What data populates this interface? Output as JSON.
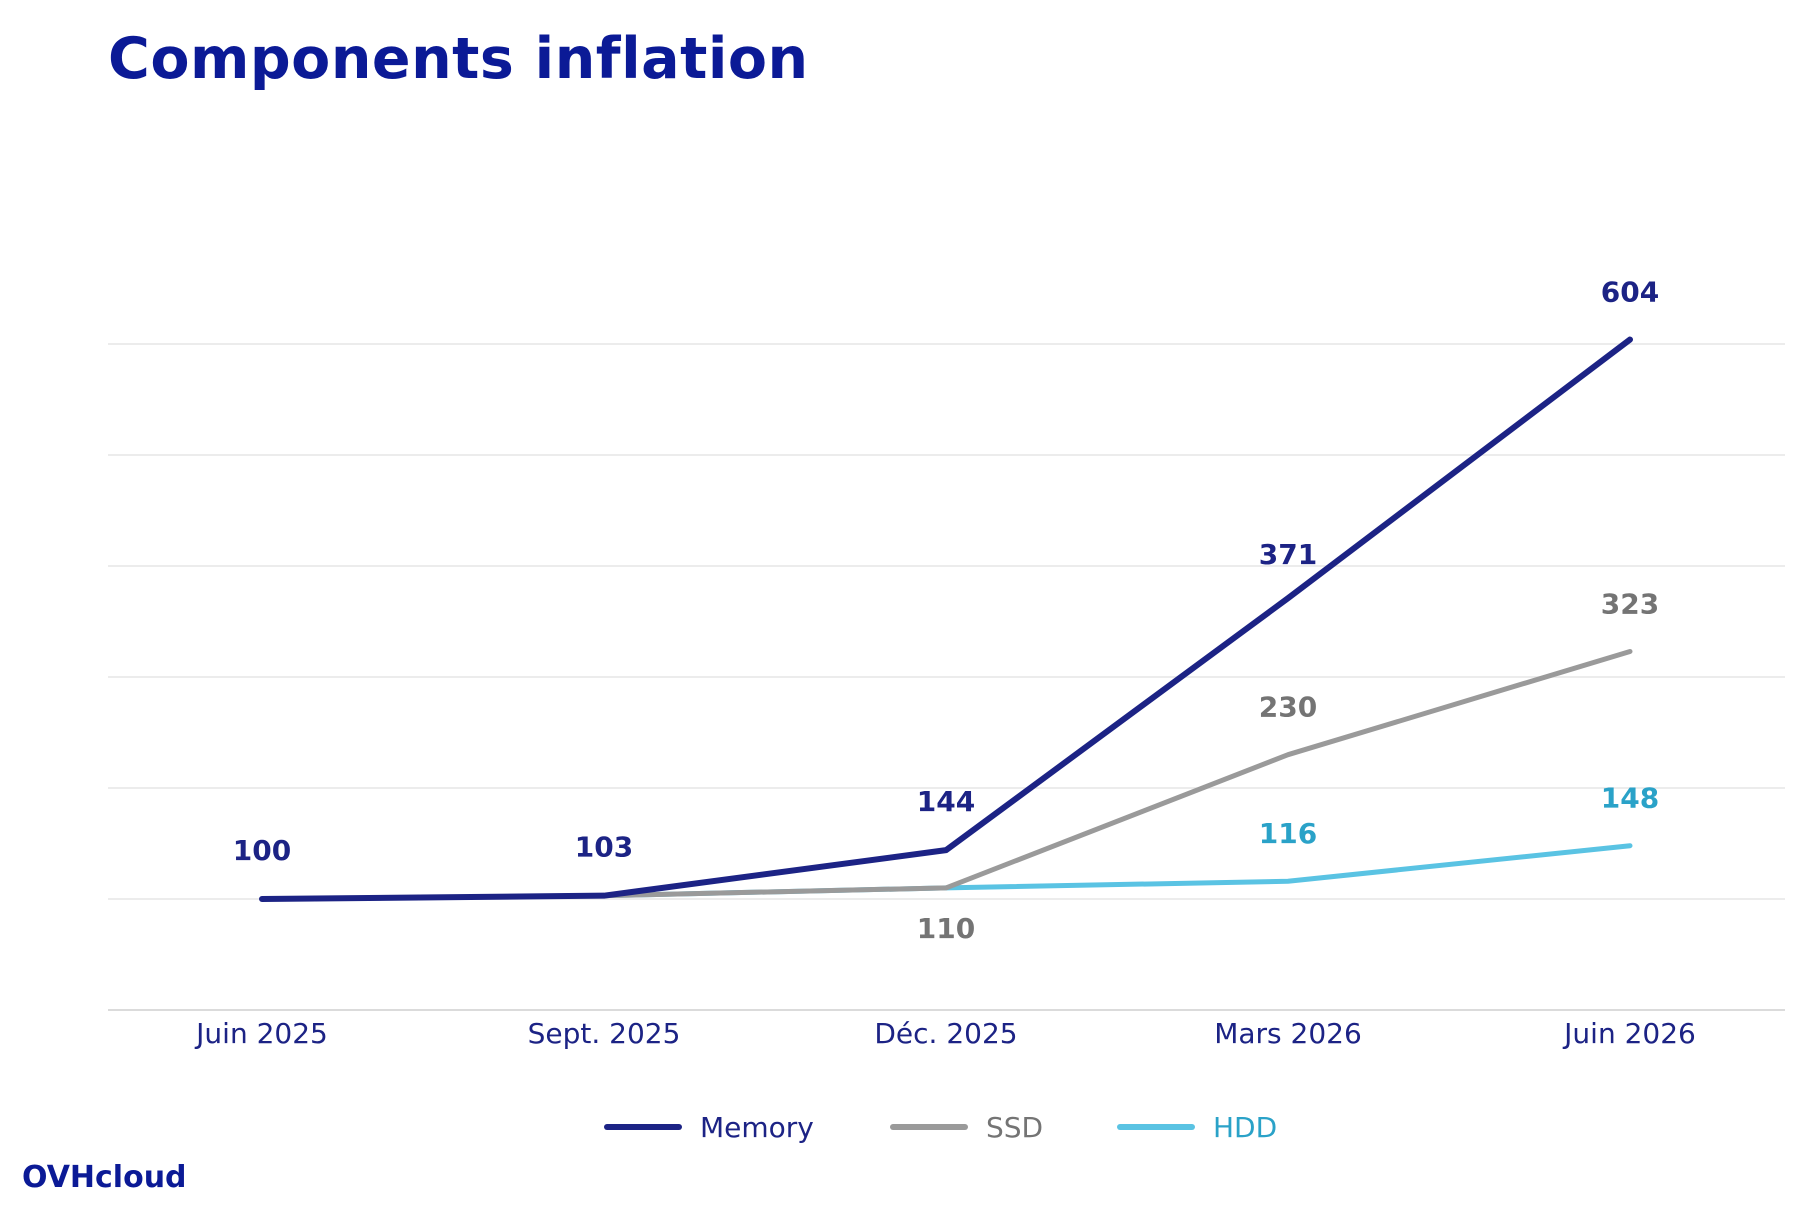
{
  "chart_data": {
    "type": "line",
    "title": "Components inflation",
    "categories": [
      "Juin 2025",
      "Sept. 2025",
      "Déc. 2025",
      "Mars 2026",
      "Juin 2026"
    ],
    "series": [
      {
        "name": "Memory",
        "values": [
          100,
          103,
          144,
          371,
          604
        ],
        "color": "#1c2385",
        "labels": [
          "100",
          "103",
          "144",
          "371",
          "604"
        ]
      },
      {
        "name": "SSD",
        "values": [
          100,
          103,
          110,
          230,
          323
        ],
        "color": "#9a9a9a",
        "labels": [
          "",
          "",
          "110",
          "230",
          "323"
        ]
      },
      {
        "name": "HDD",
        "values": [
          100,
          103,
          110,
          116,
          148
        ],
        "color": "#5ac3e3",
        "labels": [
          "",
          "",
          "",
          "116",
          "148"
        ]
      }
    ],
    "label_colors": {
      "Memory": "#1c2385",
      "SSD": "#747474",
      "HDD": "#2aa2c8"
    },
    "ylim": [
      0,
      650
    ],
    "grid": true,
    "legend": "bottom-center"
  },
  "brand": "OVHcloud"
}
